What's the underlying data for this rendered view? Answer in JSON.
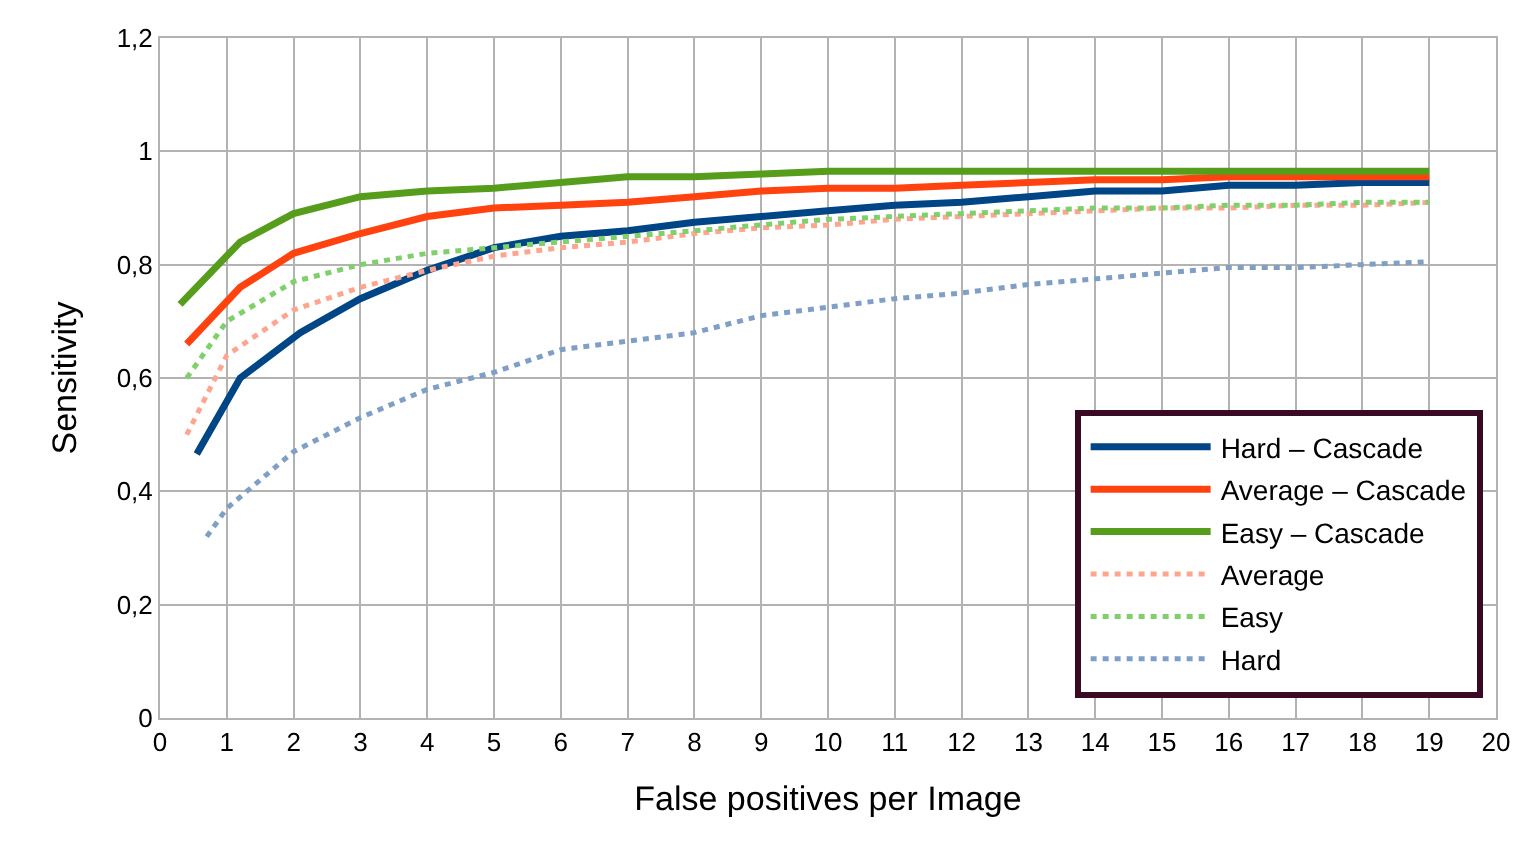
{
  "chart_data": {
    "type": "line",
    "xlabel": "False positives per Image",
    "ylabel": "Sensitivity",
    "xlim": [
      0,
      20
    ],
    "xticks": [
      0,
      1,
      2,
      3,
      4,
      5,
      6,
      7,
      8,
      9,
      10,
      11,
      12,
      13,
      14,
      15,
      16,
      17,
      18,
      19,
      20
    ],
    "ylim": [
      0,
      1.2
    ],
    "yticks": [
      0,
      {
        "value": 0.2,
        "label": "0,2"
      },
      {
        "value": 0.4,
        "label": "0,4"
      },
      {
        "value": 0.6,
        "label": "0,6"
      },
      {
        "value": 0.8,
        "label": "0,8"
      },
      1,
      {
        "value": 1.2,
        "label": "1,2"
      }
    ],
    "grid": true,
    "legend": "bottom right",
    "marker": "none",
    "series": [
      {
        "name": "Hard – Cascade",
        "color": "#004586",
        "line_style": "solid",
        "x": [
          0.55,
          1.2,
          2.1,
          3,
          4,
          5,
          6,
          7,
          8,
          9,
          10,
          11,
          12,
          13,
          14,
          15,
          16,
          17,
          18,
          19
        ],
        "values": [
          0.466,
          0.6,
          0.68,
          0.74,
          0.79,
          0.83,
          0.85,
          0.86,
          0.875,
          0.885,
          0.895,
          0.905,
          0.91,
          0.92,
          0.93,
          0.93,
          0.94,
          0.94,
          0.945,
          0.945
        ]
      },
      {
        "name": "Average – Cascade",
        "color": "#ff420e",
        "line_style": "solid",
        "x": [
          0.4,
          1.2,
          2,
          3,
          4,
          5,
          6,
          7,
          8,
          9,
          10,
          11,
          12,
          13,
          14,
          15,
          16,
          17,
          18,
          19
        ],
        "values": [
          0.66,
          0.76,
          0.82,
          0.855,
          0.885,
          0.9,
          0.905,
          0.91,
          0.92,
          0.93,
          0.935,
          0.935,
          0.94,
          0.945,
          0.95,
          0.95,
          0.955,
          0.955,
          0.955,
          0.955
        ]
      },
      {
        "name": "Easy – Cascade",
        "color": "#579d1c",
        "line_style": "solid",
        "x": [
          0.3,
          1.2,
          2,
          3,
          4,
          5,
          6,
          7,
          8,
          9,
          10,
          11,
          12,
          13,
          14,
          15,
          16,
          17,
          18,
          19
        ],
        "values": [
          0.73,
          0.84,
          0.89,
          0.92,
          0.93,
          0.935,
          0.945,
          0.955,
          0.955,
          0.96,
          0.965,
          0.965,
          0.965,
          0.965,
          0.965,
          0.965,
          0.965,
          0.965,
          0.965,
          0.965
        ]
      },
      {
        "name": "Average",
        "color": "#ffa58f",
        "line_style": "dotted",
        "x": [
          0.4,
          1,
          2,
          3,
          4,
          5,
          6,
          7,
          8,
          9,
          10,
          11,
          12,
          13,
          14,
          15,
          16,
          17,
          18,
          19
        ],
        "values": [
          0.5,
          0.64,
          0.72,
          0.76,
          0.79,
          0.815,
          0.83,
          0.84,
          0.855,
          0.865,
          0.87,
          0.88,
          0.885,
          0.89,
          0.895,
          0.9,
          0.9,
          0.905,
          0.905,
          0.91
        ]
      },
      {
        "name": "Easy",
        "color": "#7fcf6a",
        "line_style": "dotted",
        "x": [
          0.4,
          1,
          2,
          3,
          4,
          5,
          6,
          7,
          8,
          9,
          10,
          11,
          12,
          13,
          14,
          15,
          16,
          17,
          18,
          19
        ],
        "values": [
          0.6,
          0.7,
          0.77,
          0.8,
          0.82,
          0.83,
          0.84,
          0.85,
          0.86,
          0.87,
          0.88,
          0.885,
          0.89,
          0.895,
          0.9,
          0.9,
          0.905,
          0.905,
          0.91,
          0.91
        ]
      },
      {
        "name": "Hard",
        "color": "#7f9fc6",
        "line_style": "dotted",
        "x": [
          0.7,
          1,
          2,
          3,
          4,
          5,
          6,
          7,
          8,
          9,
          10,
          11,
          12,
          13,
          14,
          15,
          16,
          17,
          18,
          19
        ],
        "values": [
          0.32,
          0.37,
          0.47,
          0.53,
          0.58,
          0.61,
          0.65,
          0.665,
          0.68,
          0.71,
          0.725,
          0.74,
          0.75,
          0.765,
          0.775,
          0.785,
          0.795,
          0.795,
          0.8,
          0.805
        ]
      }
    ]
  }
}
